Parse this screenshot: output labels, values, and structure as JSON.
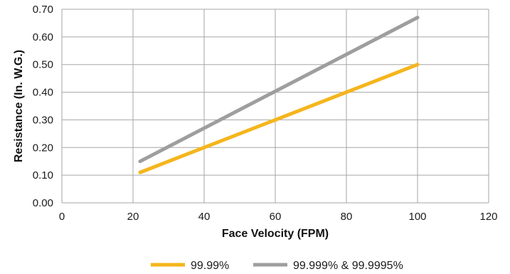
{
  "chart_data": {
    "type": "line",
    "title": "",
    "xlabel": "Face Velocity (FPM)",
    "ylabel": "Resistance (In. W.G.)",
    "xlim": [
      0,
      120
    ],
    "ylim": [
      0,
      0.7
    ],
    "x_ticks": [
      "0",
      "20",
      "40",
      "60",
      "80",
      "100",
      "120"
    ],
    "y_ticks": [
      "0.00",
      "0.10",
      "0.20",
      "0.30",
      "0.40",
      "0.50",
      "0.60",
      "0.70"
    ],
    "grid": true,
    "legend_position": "bottom",
    "series": [
      {
        "name": "99.99%",
        "color": "#F5B51D",
        "x": [
          22,
          100
        ],
        "y": [
          0.11,
          0.5
        ]
      },
      {
        "name": "99.999% & 99.9995%",
        "color": "#9E9E9E",
        "x": [
          22,
          100
        ],
        "y": [
          0.15,
          0.67
        ]
      }
    ]
  }
}
